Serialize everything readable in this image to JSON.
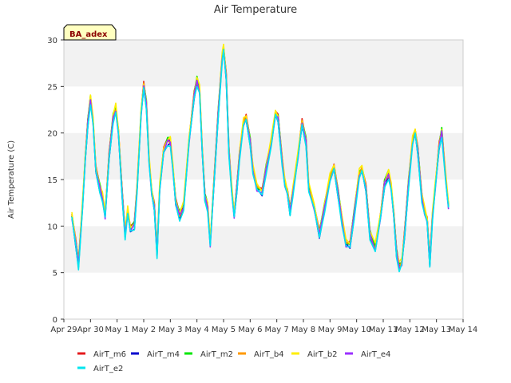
{
  "chart_data": {
    "type": "line",
    "title": "Air Temperature",
    "xlabel": "",
    "ylabel": "Air Temperature (C)",
    "badge": "BA_adex",
    "ylim": [
      0,
      30
    ],
    "yticks": [
      0,
      5,
      10,
      15,
      20,
      25,
      30
    ],
    "xlim": [
      0,
      15
    ],
    "xticks": [
      {
        "value": 0,
        "label": "Apr 29"
      },
      {
        "value": 1,
        "label": "Apr 30"
      },
      {
        "value": 2,
        "label": "May 1"
      },
      {
        "value": 3,
        "label": "May 2"
      },
      {
        "value": 4,
        "label": "May 3"
      },
      {
        "value": 5,
        "label": "May 4"
      },
      {
        "value": 6,
        "label": "May 5"
      },
      {
        "value": 7,
        "label": "May 6"
      },
      {
        "value": 8,
        "label": "May 7"
      },
      {
        "value": 9,
        "label": "May 8"
      },
      {
        "value": 10,
        "label": "May 9"
      },
      {
        "value": 11,
        "label": "May 10"
      },
      {
        "value": 12,
        "label": "May 11"
      },
      {
        "value": 13,
        "label": "May 12"
      },
      {
        "value": 14,
        "label": "May 13"
      },
      {
        "value": 15,
        "label": "May 14"
      }
    ],
    "grid": "horizontal bands",
    "legend_position": "bottom",
    "x_unit": "days since Apr 29",
    "base_series": [
      [
        0.3,
        11.0
      ],
      [
        0.45,
        8.0
      ],
      [
        0.55,
        5.8
      ],
      [
        0.7,
        12.0
      ],
      [
        0.8,
        17.0
      ],
      [
        0.9,
        21.0
      ],
      [
        1.0,
        23.5
      ],
      [
        1.1,
        21.0
      ],
      [
        1.2,
        16.0
      ],
      [
        1.35,
        14.0
      ],
      [
        1.45,
        13.0
      ],
      [
        1.55,
        11.0
      ],
      [
        1.7,
        17.5
      ],
      [
        1.85,
        21.5
      ],
      [
        1.95,
        22.5
      ],
      [
        2.05,
        20.0
      ],
      [
        2.2,
        13.0
      ],
      [
        2.3,
        9.0
      ],
      [
        2.4,
        11.5
      ],
      [
        2.5,
        9.5
      ],
      [
        2.65,
        10.0
      ],
      [
        2.75,
        14.0
      ],
      [
        2.9,
        22.0
      ],
      [
        3.0,
        25.0
      ],
      [
        3.1,
        23.0
      ],
      [
        3.2,
        17.0
      ],
      [
        3.3,
        13.5
      ],
      [
        3.4,
        12.0
      ],
      [
        3.5,
        7.0
      ],
      [
        3.6,
        14.0
      ],
      [
        3.75,
        18.0
      ],
      [
        3.9,
        19.0
      ],
      [
        4.0,
        19.0
      ],
      [
        4.1,
        16.0
      ],
      [
        4.2,
        12.5
      ],
      [
        4.35,
        11.0
      ],
      [
        4.5,
        12.0
      ],
      [
        4.7,
        19.0
      ],
      [
        4.9,
        24.0
      ],
      [
        5.0,
        25.5
      ],
      [
        5.1,
        24.5
      ],
      [
        5.2,
        18.0
      ],
      [
        5.3,
        13.0
      ],
      [
        5.4,
        12.0
      ],
      [
        5.5,
        8.0
      ],
      [
        5.65,
        15.0
      ],
      [
        5.8,
        22.0
      ],
      [
        5.95,
        28.0
      ],
      [
        6.0,
        29.0
      ],
      [
        6.1,
        26.0
      ],
      [
        6.2,
        18.0
      ],
      [
        6.3,
        14.0
      ],
      [
        6.4,
        11.0
      ],
      [
        6.5,
        14.0
      ],
      [
        6.6,
        17.5
      ],
      [
        6.75,
        21.0
      ],
      [
        6.85,
        21.5
      ],
      [
        7.0,
        19.0
      ],
      [
        7.1,
        16.0
      ],
      [
        7.25,
        14.0
      ],
      [
        7.45,
        13.5
      ],
      [
        7.6,
        16.0
      ],
      [
        7.8,
        19.0
      ],
      [
        7.95,
        22.0
      ],
      [
        8.05,
        21.5
      ],
      [
        8.2,
        17.0
      ],
      [
        8.3,
        14.5
      ],
      [
        8.4,
        13.5
      ],
      [
        8.5,
        11.5
      ],
      [
        8.6,
        13.5
      ],
      [
        8.8,
        17.5
      ],
      [
        8.95,
        21.0
      ],
      [
        9.1,
        19.0
      ],
      [
        9.2,
        14.0
      ],
      [
        9.4,
        12.0
      ],
      [
        9.6,
        9.0
      ],
      [
        9.8,
        12.0
      ],
      [
        10.0,
        15.0
      ],
      [
        10.15,
        16.2
      ],
      [
        10.3,
        13.5
      ],
      [
        10.45,
        10.5
      ],
      [
        10.6,
        8.0
      ],
      [
        10.75,
        7.8
      ],
      [
        10.9,
        11.0
      ],
      [
        11.1,
        15.5
      ],
      [
        11.2,
        16.0
      ],
      [
        11.35,
        14.0
      ],
      [
        11.5,
        9.0
      ],
      [
        11.7,
        7.5
      ],
      [
        11.9,
        11.0
      ],
      [
        12.05,
        14.5
      ],
      [
        12.2,
        15.5
      ],
      [
        12.3,
        14.0
      ],
      [
        12.4,
        11.0
      ],
      [
        12.5,
        7.0
      ],
      [
        12.6,
        5.5
      ],
      [
        12.7,
        6.0
      ],
      [
        12.8,
        9.0
      ],
      [
        12.95,
        14.5
      ],
      [
        13.1,
        19.0
      ],
      [
        13.2,
        20.0
      ],
      [
        13.3,
        18.0
      ],
      [
        13.45,
        13.0
      ],
      [
        13.55,
        11.5
      ],
      [
        13.65,
        10.5
      ],
      [
        13.75,
        6.0
      ],
      [
        13.85,
        11.0
      ],
      [
        13.95,
        14.0
      ],
      [
        14.1,
        18.5
      ],
      [
        14.2,
        20.0
      ],
      [
        14.35,
        15.0
      ],
      [
        14.45,
        12.0
      ]
    ],
    "series": [
      {
        "name": "AirT_m6",
        "color": "#e41a1c",
        "offset": 0.3
      },
      {
        "name": "AirT_m4",
        "color": "#0000cd",
        "offset": -0.1
      },
      {
        "name": "AirT_m2",
        "color": "#00e600",
        "offset": 0.35
      },
      {
        "name": "AirT_b4",
        "color": "#ff9900",
        "offset": 0.15
      },
      {
        "name": "AirT_b2",
        "color": "#ffee00",
        "offset": 0.45
      },
      {
        "name": "AirT_e4",
        "color": "#9b30ff",
        "offset": 0.0
      },
      {
        "name": "AirT_e2",
        "color": "#00e5ee",
        "offset": -0.25
      }
    ]
  }
}
